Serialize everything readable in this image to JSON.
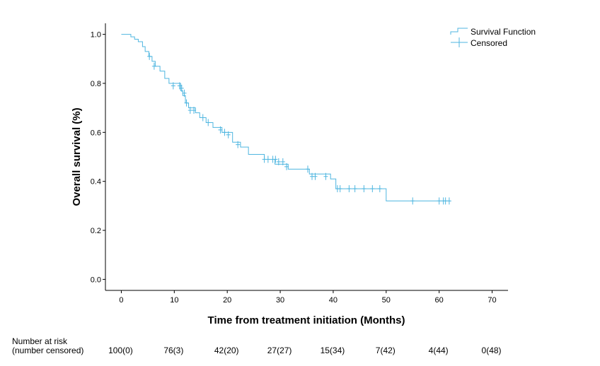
{
  "chart_data": {
    "type": "line",
    "title": "",
    "xlabel": "Time from treatment initiation (Months)",
    "ylabel": "Overall survival (%)",
    "xlim": [
      -3,
      73
    ],
    "ylim": [
      -0.045,
      1.045
    ],
    "x_ticks": [
      "0",
      "10",
      "20",
      "30",
      "40",
      "50",
      "60",
      "70"
    ],
    "x_tick_values": [
      0,
      10,
      20,
      30,
      40,
      50,
      60,
      70
    ],
    "y_ticks": [
      "0.0",
      "0.2",
      "0.4",
      "0.6",
      "0.8",
      "1.0"
    ],
    "y_tick_values": [
      0,
      0.2,
      0.4,
      0.6,
      0.8,
      1.0
    ],
    "grid": false,
    "legend_position": "top-right",
    "series_color": "#4FB6E0",
    "series": [
      {
        "name": "Survival Function",
        "x": [
          0,
          1.8,
          2.5,
          3.2,
          4.0,
          4.5,
          5.2,
          5.8,
          6.4,
          7.3,
          8.2,
          9.0,
          11.2,
          11.6,
          12.1,
          12.7,
          14.0,
          14.8,
          16.0,
          17.3,
          19.0,
          21.0,
          22.5,
          24.0,
          27.0,
          29.0,
          31.5,
          35.5,
          39.5,
          40.5,
          50.0,
          62.0
        ],
        "y": [
          1.0,
          0.99,
          0.98,
          0.97,
          0.95,
          0.93,
          0.91,
          0.89,
          0.87,
          0.85,
          0.82,
          0.8,
          0.77,
          0.75,
          0.72,
          0.7,
          0.68,
          0.66,
          0.64,
          0.62,
          0.6,
          0.56,
          0.54,
          0.51,
          0.49,
          0.47,
          0.45,
          0.43,
          0.41,
          0.37,
          0.32,
          0.32
        ]
      },
      {
        "name": "Censored",
        "x": [
          5.3,
          6.2,
          9.8,
          11.0,
          11.4,
          11.9,
          12.3,
          13.0,
          13.7,
          15.4,
          16.4,
          18.7,
          19.5,
          20.2,
          22.0,
          27.0,
          27.7,
          28.6,
          29.1,
          29.7,
          30.5,
          31.2,
          35.2,
          36.0,
          36.6,
          38.6,
          40.8,
          41.3,
          43.0,
          44.1,
          45.8,
          47.4,
          48.8,
          55.0,
          60.0,
          60.8,
          61.2,
          61.9
        ],
        "y": [
          0.91,
          0.87,
          0.79,
          0.79,
          0.78,
          0.76,
          0.72,
          0.69,
          0.69,
          0.66,
          0.64,
          0.61,
          0.6,
          0.59,
          0.55,
          0.49,
          0.49,
          0.49,
          0.49,
          0.48,
          0.48,
          0.46,
          0.45,
          0.42,
          0.42,
          0.42,
          0.37,
          0.37,
          0.37,
          0.37,
          0.37,
          0.37,
          0.37,
          0.32,
          0.32,
          0.32,
          0.32,
          0.32
        ]
      }
    ],
    "legend": [
      "Survival Function",
      "Censored"
    ]
  },
  "risk_table": {
    "label_line1": "Number at risk",
    "label_line2": "(number censored)",
    "values": [
      "100(0)",
      "76(3)",
      "42(20)",
      "27(27)",
      "15(34)",
      "7(42)",
      "4(44)",
      "0(48)"
    ]
  }
}
